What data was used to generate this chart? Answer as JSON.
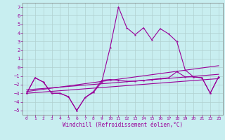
{
  "title": "",
  "xlabel": "Windchill (Refroidissement éolien,°C)",
  "background_color": "#c8eef0",
  "grid_color": "#b0d0d0",
  "line_color": "#990099",
  "xlim": [
    -0.5,
    23.5
  ],
  "ylim": [
    -5.5,
    7.5
  ],
  "yticks": [
    7,
    6,
    5,
    4,
    3,
    2,
    1,
    0,
    -1,
    -2,
    -3,
    -4,
    -5
  ],
  "xticks": [
    0,
    1,
    2,
    3,
    4,
    5,
    6,
    7,
    8,
    9,
    10,
    11,
    12,
    13,
    14,
    15,
    16,
    17,
    18,
    19,
    20,
    21,
    22,
    23
  ],
  "line_main_x": [
    0,
    1,
    2,
    3,
    4,
    5,
    6,
    7,
    8,
    9,
    10,
    11,
    12,
    13,
    14,
    15,
    16,
    17,
    18,
    19,
    20,
    21,
    22,
    23
  ],
  "line_main_y": [
    -3.0,
    -1.2,
    -1.7,
    -3.0,
    -3.0,
    -3.4,
    -5.0,
    -3.5,
    -2.9,
    -1.7,
    2.3,
    7.0,
    4.6,
    3.8,
    4.6,
    3.2,
    4.5,
    3.9,
    3.0,
    -0.3,
    -1.1,
    -1.2,
    -3.0,
    -1.1
  ],
  "line_low_x": [
    0,
    1,
    2,
    3,
    4,
    5,
    6,
    7,
    8,
    9,
    10,
    11,
    12,
    13,
    14,
    15,
    16,
    17,
    18,
    19,
    20,
    21,
    22,
    23
  ],
  "line_low_y": [
    -3.0,
    -1.2,
    -1.7,
    -3.0,
    -3.0,
    -3.4,
    -5.0,
    -3.5,
    -2.8,
    -1.5,
    -1.4,
    -1.5,
    -1.6,
    -1.6,
    -1.5,
    -1.4,
    -1.3,
    -1.2,
    -0.5,
    -1.1,
    -1.1,
    -1.2,
    -3.0,
    -1.1
  ],
  "line3_x": [
    0,
    23
  ],
  "line3_y": [
    -3.0,
    -1.3
  ],
  "line4_x": [
    0,
    23
  ],
  "line4_y": [
    -2.6,
    -0.8
  ],
  "line5_x": [
    0,
    23
  ],
  "line5_y": [
    -2.8,
    0.2
  ]
}
